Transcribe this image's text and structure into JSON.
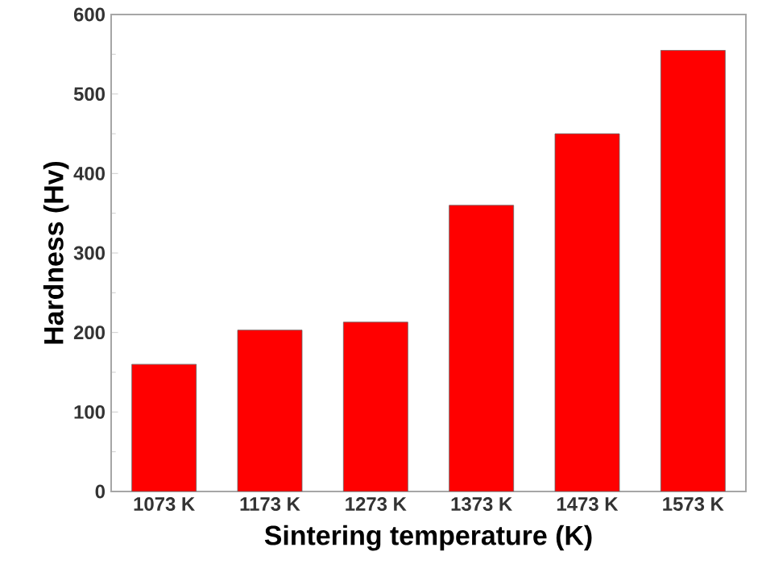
{
  "chart_data": {
    "type": "bar",
    "xlabel": "Sintering temperature (K)",
    "ylabel": "Hardness (Hv)",
    "categories": [
      "1073 K",
      "1173 K",
      "1273 K",
      "1373 K",
      "1473 K",
      "1573 K"
    ],
    "values": [
      160,
      203,
      213,
      360,
      450,
      555
    ],
    "color": "#ff0000",
    "ylim": [
      0,
      600
    ],
    "yticks": [
      0,
      100,
      200,
      300,
      400,
      500,
      600
    ],
    "grid": false
  }
}
